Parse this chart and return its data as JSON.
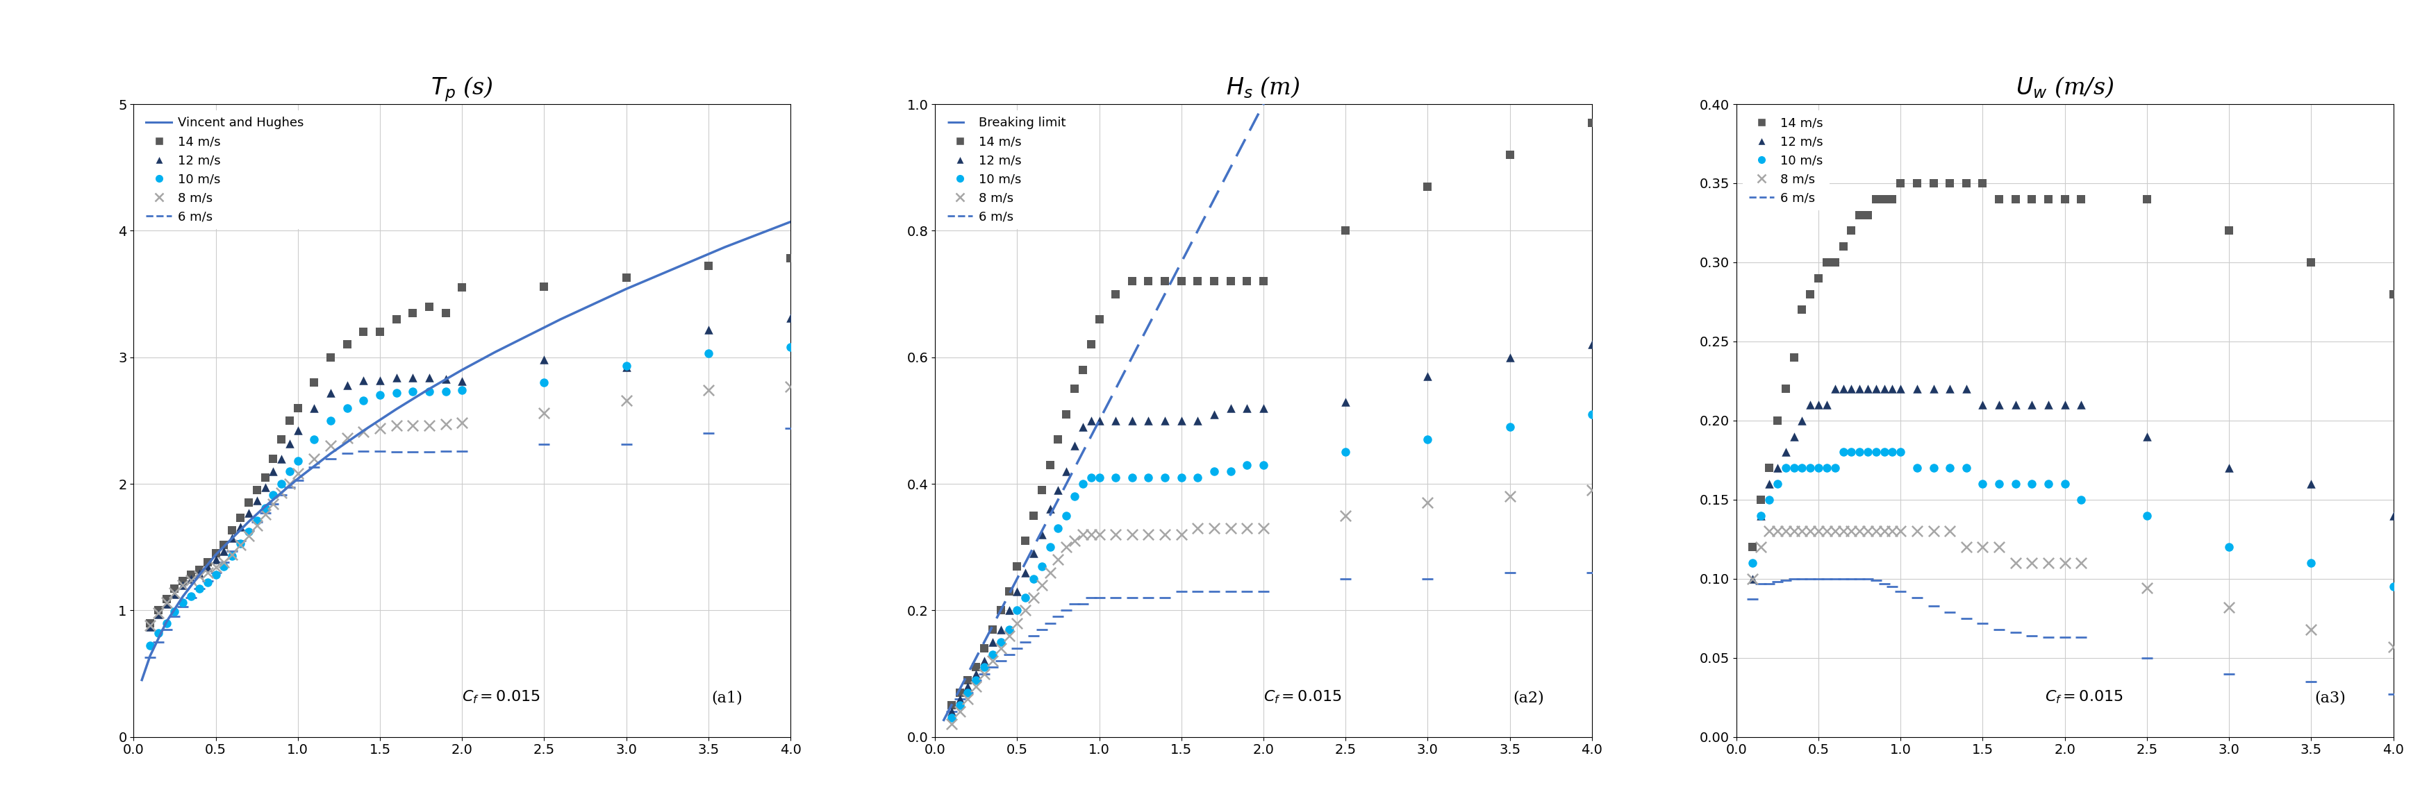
{
  "fig_width": 34.98,
  "fig_height": 11.54,
  "panel1_title": "$T_p$ (s)",
  "panel2_title": "$H_s$ (m)",
  "panel3_title": "$U_w$ (m/s)",
  "xlim": [
    0.0,
    4.0
  ],
  "panel1_ylim": [
    0.0,
    5.0
  ],
  "panel2_ylim": [
    0.0,
    1.0
  ],
  "panel3_ylim": [
    0.0,
    0.4
  ],
  "panel1_yticks": [
    0.0,
    1.0,
    2.0,
    3.0,
    4.0,
    5.0
  ],
  "panel2_yticks": [
    0.0,
    0.2,
    0.4,
    0.6,
    0.8,
    1.0
  ],
  "panel3_yticks": [
    0.0,
    0.05,
    0.1,
    0.15,
    0.2,
    0.25,
    0.3,
    0.35,
    0.4
  ],
  "xticks": [
    0.0,
    0.5,
    1.0,
    1.5,
    2.0,
    2.5,
    3.0,
    3.5,
    4.0
  ],
  "annotation_cf": "$C_f = 0.015$",
  "color_14": "#595959",
  "color_12": "#1f3864",
  "color_10": "#00b0f0",
  "color_8": "#a6a6a6",
  "color_6": "#4472c4",
  "color_vh": "#4472c4",
  "tp_14": [
    0.1,
    0.15,
    0.2,
    0.25,
    0.3,
    0.35,
    0.4,
    0.45,
    0.5,
    0.55,
    0.6,
    0.65,
    0.7,
    0.75,
    0.8,
    0.85,
    0.9,
    0.95,
    1.0,
    1.1,
    1.2,
    1.3,
    1.4,
    1.5,
    1.6,
    1.7,
    1.8,
    1.9,
    2.0,
    2.5,
    3.0,
    3.5,
    4.0
  ],
  "tp_14_y": [
    0.9,
    1.0,
    1.09,
    1.17,
    1.23,
    1.28,
    1.32,
    1.38,
    1.45,
    1.52,
    1.63,
    1.73,
    1.85,
    1.95,
    2.05,
    2.2,
    2.35,
    2.5,
    2.6,
    2.8,
    3.0,
    3.1,
    3.2,
    3.2,
    3.3,
    3.35,
    3.4,
    3.35,
    3.55,
    3.56,
    3.63,
    3.72,
    3.78
  ],
  "tp_12": [
    0.1,
    0.15,
    0.2,
    0.25,
    0.3,
    0.35,
    0.4,
    0.45,
    0.5,
    0.55,
    0.6,
    0.65,
    0.7,
    0.75,
    0.8,
    0.85,
    0.9,
    0.95,
    1.0,
    1.1,
    1.2,
    1.3,
    1.4,
    1.5,
    1.6,
    1.7,
    1.8,
    1.9,
    2.0,
    2.5,
    3.0,
    3.5,
    4.0
  ],
  "tp_12_y": [
    0.87,
    0.97,
    1.05,
    1.13,
    1.2,
    1.25,
    1.29,
    1.34,
    1.4,
    1.47,
    1.57,
    1.66,
    1.77,
    1.87,
    1.97,
    2.1,
    2.2,
    2.32,
    2.42,
    2.6,
    2.72,
    2.78,
    2.82,
    2.82,
    2.84,
    2.84,
    2.84,
    2.83,
    2.81,
    2.98,
    2.92,
    3.22,
    3.31
  ],
  "tp_10": [
    0.1,
    0.15,
    0.2,
    0.25,
    0.3,
    0.35,
    0.4,
    0.45,
    0.5,
    0.55,
    0.6,
    0.65,
    0.7,
    0.75,
    0.8,
    0.85,
    0.9,
    0.95,
    1.0,
    1.1,
    1.2,
    1.3,
    1.4,
    1.5,
    1.6,
    1.7,
    1.8,
    1.9,
    2.0,
    2.5,
    3.0,
    3.5,
    4.0
  ],
  "tp_10_y": [
    0.72,
    0.82,
    0.9,
    0.99,
    1.06,
    1.11,
    1.17,
    1.22,
    1.28,
    1.35,
    1.43,
    1.53,
    1.62,
    1.71,
    1.81,
    1.91,
    2.0,
    2.1,
    2.18,
    2.35,
    2.5,
    2.6,
    2.66,
    2.7,
    2.72,
    2.73,
    2.73,
    2.73,
    2.74,
    2.8,
    2.93,
    3.03,
    3.08
  ],
  "tp_8": [
    0.1,
    0.15,
    0.2,
    0.25,
    0.3,
    0.35,
    0.4,
    0.45,
    0.5,
    0.55,
    0.6,
    0.65,
    0.7,
    0.75,
    0.8,
    0.85,
    0.9,
    0.95,
    1.0,
    1.1,
    1.2,
    1.3,
    1.4,
    1.5,
    1.6,
    1.7,
    1.8,
    1.9,
    2.0,
    2.5,
    3.0,
    3.5,
    4.0
  ],
  "tp_8_y": [
    0.88,
    0.98,
    1.06,
    1.14,
    1.2,
    1.24,
    1.27,
    1.3,
    1.34,
    1.38,
    1.44,
    1.52,
    1.59,
    1.67,
    1.76,
    1.84,
    1.93,
    2.0,
    2.08,
    2.2,
    2.3,
    2.36,
    2.41,
    2.44,
    2.46,
    2.46,
    2.46,
    2.47,
    2.48,
    2.56,
    2.66,
    2.74,
    2.77
  ],
  "tp_6": [
    0.1,
    0.15,
    0.2,
    0.25,
    0.3,
    0.35,
    0.4,
    0.45,
    0.5,
    0.55,
    0.6,
    0.65,
    0.7,
    0.75,
    0.8,
    0.85,
    0.9,
    0.95,
    1.0,
    1.1,
    1.2,
    1.3,
    1.4,
    1.5,
    1.6,
    1.7,
    1.8,
    1.9,
    2.0,
    2.5,
    3.0,
    3.5,
    4.0
  ],
  "tp_6_y": [
    0.63,
    0.75,
    0.85,
    0.95,
    1.03,
    1.1,
    1.17,
    1.23,
    1.3,
    1.38,
    1.47,
    1.55,
    1.63,
    1.7,
    1.77,
    1.84,
    1.91,
    1.97,
    2.03,
    2.13,
    2.2,
    2.24,
    2.26,
    2.26,
    2.25,
    2.25,
    2.25,
    2.26,
    2.26,
    2.31,
    2.31,
    2.4,
    2.44
  ],
  "tp_vh_x": [
    0.05,
    0.1,
    0.2,
    0.3,
    0.4,
    0.5,
    0.6,
    0.7,
    0.8,
    0.9,
    1.0,
    1.2,
    1.4,
    1.6,
    1.8,
    2.0,
    2.2,
    2.4,
    2.6,
    2.8,
    3.0,
    3.2,
    3.4,
    3.6,
    3.8,
    4.0
  ],
  "tp_vh_y": [
    0.45,
    0.64,
    0.91,
    1.11,
    1.28,
    1.44,
    1.57,
    1.7,
    1.82,
    1.93,
    2.04,
    2.24,
    2.42,
    2.59,
    2.75,
    2.9,
    3.04,
    3.17,
    3.3,
    3.42,
    3.54,
    3.65,
    3.76,
    3.87,
    3.97,
    4.07
  ],
  "hs_14": [
    0.1,
    0.15,
    0.2,
    0.25,
    0.3,
    0.35,
    0.4,
    0.45,
    0.5,
    0.55,
    0.6,
    0.65,
    0.7,
    0.75,
    0.8,
    0.85,
    0.9,
    0.95,
    1.0,
    1.1,
    1.2,
    1.3,
    1.4,
    1.5,
    1.6,
    1.7,
    1.8,
    1.9,
    2.0,
    2.5,
    3.0,
    3.5,
    4.0
  ],
  "hs_14_y": [
    0.05,
    0.07,
    0.09,
    0.11,
    0.14,
    0.17,
    0.2,
    0.23,
    0.27,
    0.31,
    0.35,
    0.39,
    0.43,
    0.47,
    0.51,
    0.55,
    0.58,
    0.62,
    0.66,
    0.7,
    0.72,
    0.72,
    0.72,
    0.72,
    0.72,
    0.72,
    0.72,
    0.72,
    0.72,
    0.8,
    0.87,
    0.92,
    0.97
  ],
  "hs_12": [
    0.1,
    0.15,
    0.2,
    0.25,
    0.3,
    0.35,
    0.4,
    0.45,
    0.5,
    0.55,
    0.6,
    0.65,
    0.7,
    0.75,
    0.8,
    0.85,
    0.9,
    0.95,
    1.0,
    1.1,
    1.2,
    1.3,
    1.4,
    1.5,
    1.6,
    1.7,
    1.8,
    1.9,
    2.0,
    2.5,
    3.0,
    3.5,
    4.0
  ],
  "hs_12_y": [
    0.04,
    0.06,
    0.08,
    0.1,
    0.12,
    0.15,
    0.17,
    0.2,
    0.23,
    0.26,
    0.29,
    0.32,
    0.36,
    0.39,
    0.42,
    0.46,
    0.49,
    0.5,
    0.5,
    0.5,
    0.5,
    0.5,
    0.5,
    0.5,
    0.5,
    0.51,
    0.52,
    0.52,
    0.52,
    0.53,
    0.57,
    0.6,
    0.62
  ],
  "hs_10": [
    0.1,
    0.15,
    0.2,
    0.25,
    0.3,
    0.35,
    0.4,
    0.45,
    0.5,
    0.55,
    0.6,
    0.65,
    0.7,
    0.75,
    0.8,
    0.85,
    0.9,
    0.95,
    1.0,
    1.1,
    1.2,
    1.3,
    1.4,
    1.5,
    1.6,
    1.7,
    1.8,
    1.9,
    2.0,
    2.5,
    3.0,
    3.5,
    4.0
  ],
  "hs_10_y": [
    0.03,
    0.05,
    0.07,
    0.09,
    0.11,
    0.13,
    0.15,
    0.17,
    0.2,
    0.22,
    0.25,
    0.27,
    0.3,
    0.33,
    0.35,
    0.38,
    0.4,
    0.41,
    0.41,
    0.41,
    0.41,
    0.41,
    0.41,
    0.41,
    0.41,
    0.42,
    0.42,
    0.43,
    0.43,
    0.45,
    0.47,
    0.49,
    0.51
  ],
  "hs_8": [
    0.1,
    0.15,
    0.2,
    0.25,
    0.3,
    0.35,
    0.4,
    0.45,
    0.5,
    0.55,
    0.6,
    0.65,
    0.7,
    0.75,
    0.8,
    0.85,
    0.9,
    0.95,
    1.0,
    1.1,
    1.2,
    1.3,
    1.4,
    1.5,
    1.6,
    1.7,
    1.8,
    1.9,
    2.0,
    2.5,
    3.0,
    3.5,
    4.0
  ],
  "hs_8_y": [
    0.02,
    0.04,
    0.06,
    0.08,
    0.1,
    0.12,
    0.14,
    0.16,
    0.18,
    0.2,
    0.22,
    0.24,
    0.26,
    0.28,
    0.3,
    0.31,
    0.32,
    0.32,
    0.32,
    0.32,
    0.32,
    0.32,
    0.32,
    0.32,
    0.33,
    0.33,
    0.33,
    0.33,
    0.33,
    0.35,
    0.37,
    0.38,
    0.39
  ],
  "hs_6": [
    0.1,
    0.15,
    0.2,
    0.25,
    0.3,
    0.35,
    0.4,
    0.45,
    0.5,
    0.55,
    0.6,
    0.65,
    0.7,
    0.75,
    0.8,
    0.85,
    0.9,
    0.95,
    1.0,
    1.1,
    1.2,
    1.3,
    1.4,
    1.5,
    1.6,
    1.7,
    1.8,
    1.9,
    2.0,
    2.5,
    3.0,
    3.5,
    4.0
  ],
  "hs_6_y": [
    0.04,
    0.06,
    0.07,
    0.09,
    0.1,
    0.11,
    0.12,
    0.13,
    0.14,
    0.15,
    0.16,
    0.17,
    0.18,
    0.19,
    0.2,
    0.21,
    0.21,
    0.22,
    0.22,
    0.22,
    0.22,
    0.22,
    0.22,
    0.23,
    0.23,
    0.23,
    0.23,
    0.23,
    0.23,
    0.25,
    0.25,
    0.26,
    0.26
  ],
  "hs_break_x": [
    0.05,
    0.1,
    0.15,
    0.2,
    0.3,
    0.4,
    0.5,
    0.6,
    0.7,
    0.8,
    0.9,
    1.0,
    1.1,
    1.2,
    1.3,
    1.4,
    1.5,
    1.6,
    1.7,
    1.8,
    1.9,
    2.0,
    2.1
  ],
  "hs_break_y": [
    0.025,
    0.05,
    0.075,
    0.1,
    0.15,
    0.2,
    0.25,
    0.3,
    0.35,
    0.4,
    0.45,
    0.5,
    0.55,
    0.6,
    0.65,
    0.7,
    0.75,
    0.8,
    0.85,
    0.9,
    0.95,
    1.0,
    1.05
  ],
  "uw_14": [
    0.1,
    0.15,
    0.2,
    0.25,
    0.3,
    0.35,
    0.4,
    0.45,
    0.5,
    0.55,
    0.6,
    0.65,
    0.7,
    0.75,
    0.8,
    0.85,
    0.9,
    0.95,
    1.0,
    1.1,
    1.2,
    1.3,
    1.4,
    1.5,
    1.6,
    1.7,
    1.8,
    1.9,
    2.0,
    2.1,
    2.5,
    3.0,
    3.5,
    4.0
  ],
  "uw_14_y": [
    0.12,
    0.15,
    0.17,
    0.2,
    0.22,
    0.24,
    0.27,
    0.28,
    0.29,
    0.3,
    0.3,
    0.31,
    0.32,
    0.33,
    0.33,
    0.34,
    0.34,
    0.34,
    0.35,
    0.35,
    0.35,
    0.35,
    0.35,
    0.35,
    0.34,
    0.34,
    0.34,
    0.34,
    0.34,
    0.34,
    0.34,
    0.32,
    0.3,
    0.28
  ],
  "uw_12": [
    0.1,
    0.15,
    0.2,
    0.25,
    0.3,
    0.35,
    0.4,
    0.45,
    0.5,
    0.55,
    0.6,
    0.65,
    0.7,
    0.75,
    0.8,
    0.85,
    0.9,
    0.95,
    1.0,
    1.1,
    1.2,
    1.3,
    1.4,
    1.5,
    1.6,
    1.7,
    1.8,
    1.9,
    2.0,
    2.1,
    2.5,
    3.0,
    3.5,
    4.0
  ],
  "uw_12_y": [
    0.1,
    0.14,
    0.16,
    0.17,
    0.18,
    0.19,
    0.2,
    0.21,
    0.21,
    0.21,
    0.22,
    0.22,
    0.22,
    0.22,
    0.22,
    0.22,
    0.22,
    0.22,
    0.22,
    0.22,
    0.22,
    0.22,
    0.22,
    0.21,
    0.21,
    0.21,
    0.21,
    0.21,
    0.21,
    0.21,
    0.19,
    0.17,
    0.16,
    0.14
  ],
  "uw_10": [
    0.1,
    0.15,
    0.2,
    0.25,
    0.3,
    0.35,
    0.4,
    0.45,
    0.5,
    0.55,
    0.6,
    0.65,
    0.7,
    0.75,
    0.8,
    0.85,
    0.9,
    0.95,
    1.0,
    1.1,
    1.2,
    1.3,
    1.4,
    1.5,
    1.6,
    1.7,
    1.8,
    1.9,
    2.0,
    2.1,
    2.5,
    3.0,
    3.5,
    4.0
  ],
  "uw_10_y": [
    0.11,
    0.14,
    0.15,
    0.16,
    0.17,
    0.17,
    0.17,
    0.17,
    0.17,
    0.17,
    0.17,
    0.18,
    0.18,
    0.18,
    0.18,
    0.18,
    0.18,
    0.18,
    0.18,
    0.17,
    0.17,
    0.17,
    0.17,
    0.16,
    0.16,
    0.16,
    0.16,
    0.16,
    0.16,
    0.15,
    0.14,
    0.12,
    0.11,
    0.095
  ],
  "uw_8": [
    0.1,
    0.15,
    0.2,
    0.25,
    0.3,
    0.35,
    0.4,
    0.45,
    0.5,
    0.55,
    0.6,
    0.65,
    0.7,
    0.75,
    0.8,
    0.85,
    0.9,
    0.95,
    1.0,
    1.1,
    1.2,
    1.3,
    1.4,
    1.5,
    1.6,
    1.7,
    1.8,
    1.9,
    2.0,
    2.1,
    2.5,
    3.0,
    3.5,
    4.0
  ],
  "uw_8_y": [
    0.1,
    0.12,
    0.13,
    0.13,
    0.13,
    0.13,
    0.13,
    0.13,
    0.13,
    0.13,
    0.13,
    0.13,
    0.13,
    0.13,
    0.13,
    0.13,
    0.13,
    0.13,
    0.13,
    0.13,
    0.13,
    0.13,
    0.12,
    0.12,
    0.12,
    0.11,
    0.11,
    0.11,
    0.11,
    0.11,
    0.094,
    0.082,
    0.068,
    0.057
  ],
  "uw_6": [
    0.1,
    0.15,
    0.2,
    0.25,
    0.3,
    0.35,
    0.4,
    0.45,
    0.5,
    0.55,
    0.6,
    0.65,
    0.7,
    0.75,
    0.8,
    0.85,
    0.9,
    0.95,
    1.0,
    1.1,
    1.2,
    1.3,
    1.4,
    1.5,
    1.6,
    1.7,
    1.8,
    1.9,
    2.0,
    2.1,
    2.5,
    3.0,
    3.5,
    4.0
  ],
  "uw_6_y": [
    0.087,
    0.097,
    0.097,
    0.098,
    0.099,
    0.1,
    0.1,
    0.1,
    0.1,
    0.1,
    0.1,
    0.1,
    0.1,
    0.1,
    0.1,
    0.099,
    0.097,
    0.095,
    0.092,
    0.088,
    0.083,
    0.079,
    0.075,
    0.072,
    0.068,
    0.066,
    0.064,
    0.063,
    0.063,
    0.063,
    0.05,
    0.04,
    0.035,
    0.027
  ]
}
